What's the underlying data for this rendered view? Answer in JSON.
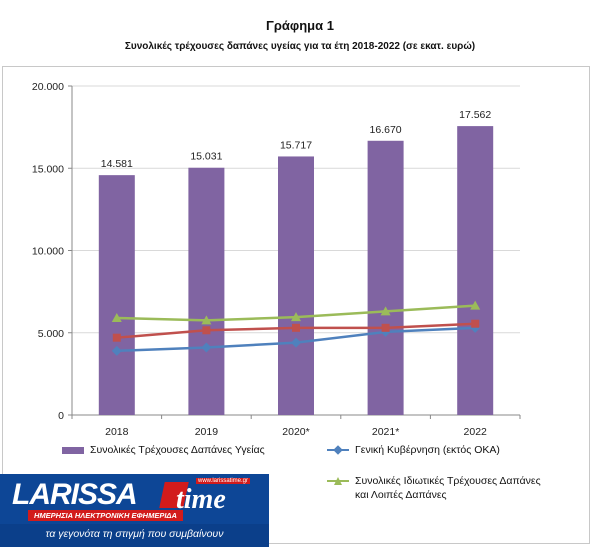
{
  "chart_data": {
    "type": "bar",
    "title": "Γράφημα 1",
    "subtitle": "Συνολικές τρέχουσες δαπάνες υγείας για τα έτη 2018-2022 (σε εκατ. ευρώ)",
    "categories": [
      "2018",
      "2019",
      "2020*",
      "2021*",
      "2022"
    ],
    "ylim": [
      0,
      20000
    ],
    "yticks": [
      0,
      5000,
      10000,
      15000,
      20000
    ],
    "ytick_labels": [
      "0",
      "5.000",
      "10.000",
      "15.000",
      "20.000"
    ],
    "grid": true,
    "legend_position": "bottom",
    "series": [
      {
        "name": "Συνολικές Τρέχουσες Δαπάνες Υγείας",
        "type": "bar",
        "color": "#8064a2",
        "values": [
          14581,
          15031,
          15717,
          16670,
          17562
        ],
        "data_labels": [
          "14.581",
          "15.031",
          "15.717",
          "16.670",
          "17.562"
        ]
      },
      {
        "name": "Γενική Κυβέρνηση (εκτός ΟΚΑ)",
        "type": "line",
        "marker": "diamond",
        "color": "#4f81bd",
        "values": [
          3900,
          4100,
          4400,
          5050,
          5300
        ]
      },
      {
        "name": "",
        "type": "line",
        "marker": "square",
        "color": "#c0504d",
        "values": [
          4700,
          5150,
          5300,
          5300,
          5550
        ]
      },
      {
        "name": "Συνολικές Ιδιωτικές Τρέχουσες Δαπάνες\nκαι Λοιπές Δαπάνες",
        "type": "line",
        "marker": "triangle",
        "color": "#9bbb59",
        "values": [
          5900,
          5750,
          5950,
          6300,
          6650
        ]
      }
    ]
  },
  "banner": {
    "logo_text": "LARISSA",
    "logo_time": "time",
    "url": "www.larissatime.gr",
    "tagline": "ΗΜΕΡΗΣΙΑ ΗΛΕΚΤΡΟΝΙΚΗ ΕΦΗΜΕΡΙΔΑ",
    "motto": "τα γεγονότα τη στιγμή που συμβαίνουν"
  }
}
